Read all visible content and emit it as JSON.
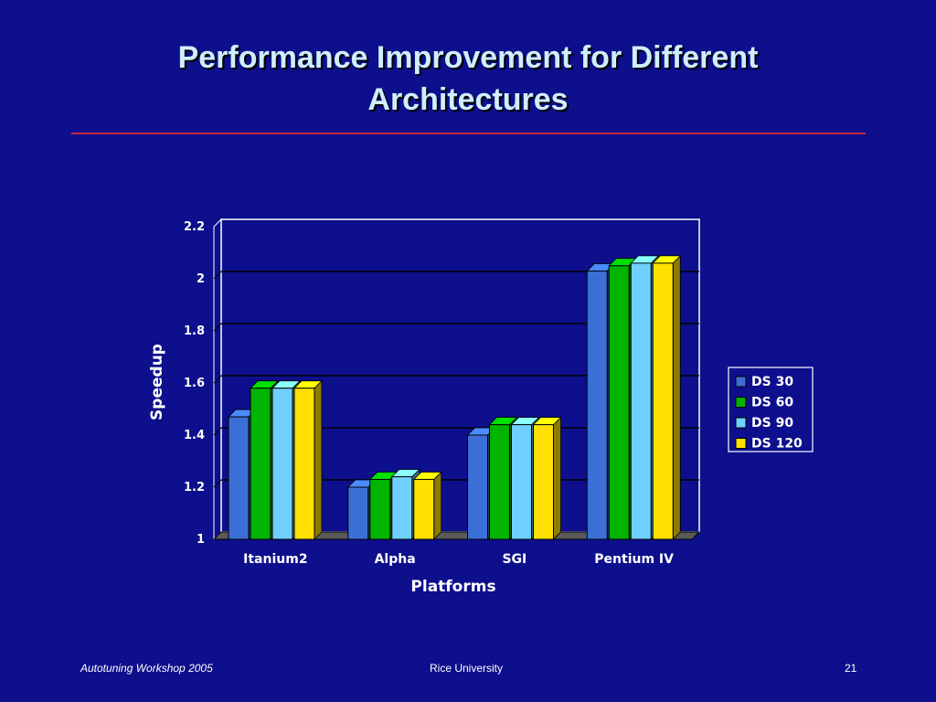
{
  "slide": {
    "title_line1": "Performance Improvement for Different",
    "title_line2": "Architectures",
    "footer_left": "Autotuning Workshop  2005",
    "footer_center": "Rice University",
    "footer_right": "21"
  },
  "colors": {
    "background": "#0d0f8c",
    "title": "#cfeeff",
    "rule": "#c8283c",
    "ds30": "#3b6fd6",
    "ds60": "#00b400",
    "ds90": "#6fd0ff",
    "ds120": "#ffe000"
  },
  "chart_data": {
    "type": "bar",
    "title": "",
    "xlabel": "Platforms",
    "ylabel": "Speedup",
    "ylim": [
      1,
      2.2
    ],
    "yticks": [
      "1",
      "1.2",
      "1.4",
      "1.6",
      "1.8",
      "2",
      "2.2"
    ],
    "grid": true,
    "legend": "right",
    "categories": [
      "Itanium2",
      "Alpha",
      "SGI",
      "Pentium IV"
    ],
    "series": [
      {
        "name": "DS 30",
        "values": [
          1.47,
          1.2,
          1.4,
          2.03
        ]
      },
      {
        "name": "DS 60",
        "values": [
          1.58,
          1.23,
          1.44,
          2.05
        ]
      },
      {
        "name": "DS 90",
        "values": [
          1.58,
          1.24,
          1.44,
          2.06
        ]
      },
      {
        "name": "DS 120",
        "values": [
          1.58,
          1.23,
          1.44,
          2.06
        ]
      }
    ]
  }
}
